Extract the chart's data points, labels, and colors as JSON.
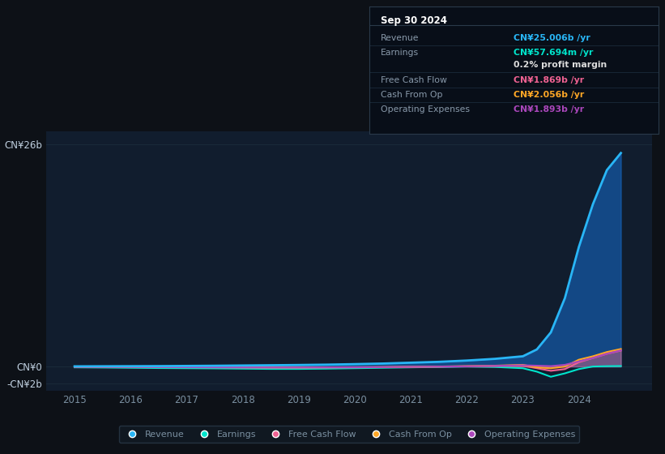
{
  "background_color": "#0d1117",
  "plot_bg_color": "#111d2e",
  "grid_color": "#1a2a3a",
  "text_color": "#7a8fa0",
  "ylabel_color": "#c0d0e0",
  "years": [
    2015.0,
    2015.5,
    2016.0,
    2016.5,
    2017.0,
    2017.5,
    2018.0,
    2018.5,
    2019.0,
    2019.5,
    2020.0,
    2020.5,
    2021.0,
    2021.5,
    2022.0,
    2022.5,
    2023.0,
    2023.25,
    2023.5,
    2023.75,
    2024.0,
    2024.25,
    2024.5,
    2024.75
  ],
  "revenue": [
    0.02,
    0.03,
    0.04,
    0.05,
    0.07,
    0.09,
    0.12,
    0.15,
    0.18,
    0.22,
    0.28,
    0.35,
    0.45,
    0.55,
    0.7,
    0.9,
    1.2,
    2.0,
    4.0,
    8.0,
    14.0,
    19.0,
    23.0,
    25.0
  ],
  "earnings": [
    -0.1,
    -0.12,
    -0.15,
    -0.18,
    -0.2,
    -0.22,
    -0.25,
    -0.28,
    -0.28,
    -0.25,
    -0.2,
    -0.15,
    -0.1,
    -0.05,
    0.0,
    -0.05,
    -0.2,
    -0.6,
    -1.2,
    -0.8,
    -0.3,
    0.0,
    0.04,
    0.058
  ],
  "free_cash_flow": [
    -0.05,
    -0.06,
    -0.07,
    -0.08,
    -0.09,
    -0.1,
    -0.11,
    -0.12,
    -0.12,
    -0.11,
    -0.1,
    -0.08,
    -0.05,
    -0.02,
    0.02,
    0.05,
    0.1,
    -0.2,
    -0.5,
    -0.3,
    0.5,
    1.0,
    1.5,
    1.869
  ],
  "cash_from_op": [
    -0.03,
    -0.04,
    -0.05,
    -0.06,
    -0.07,
    -0.08,
    -0.09,
    -0.1,
    -0.1,
    -0.09,
    -0.08,
    -0.06,
    -0.03,
    0.0,
    0.05,
    0.1,
    0.2,
    -0.1,
    -0.2,
    0.0,
    0.8,
    1.2,
    1.7,
    2.056
  ],
  "operating_expenses": [
    -0.04,
    -0.05,
    -0.06,
    -0.07,
    -0.08,
    -0.09,
    -0.1,
    -0.11,
    -0.11,
    -0.1,
    -0.09,
    -0.07,
    -0.04,
    -0.01,
    0.03,
    0.08,
    0.15,
    0.1,
    0.05,
    0.2,
    0.6,
    1.0,
    1.5,
    1.893
  ],
  "revenue_color": "#29b6f6",
  "earnings_color": "#00e5cc",
  "fcf_color": "#f06292",
  "cashop_color": "#ffa726",
  "opex_color": "#ab47bc",
  "revenue_fill_color": "#1565c0",
  "ylim_min": -2.8,
  "ylim_max": 27.5,
  "ytick_labels": [
    "-CN¥2b",
    "CN¥0",
    "CN¥26b"
  ],
  "ytick_values": [
    -2,
    0,
    26
  ],
  "xticks": [
    2015,
    2016,
    2017,
    2018,
    2019,
    2020,
    2021,
    2022,
    2023,
    2024
  ],
  "tooltip_title": "Sep 30 2024",
  "tooltip_rows": [
    {
      "label": "Revenue",
      "value": "CN¥25.006b /yr",
      "color": "#29b6f6",
      "is_pct": false
    },
    {
      "label": "Earnings",
      "value": "CN¥57.694m /yr",
      "color": "#00e5cc",
      "is_pct": false
    },
    {
      "label": "",
      "value": "0.2% profit margin",
      "color": "#dddddd",
      "is_pct": true
    },
    {
      "label": "Free Cash Flow",
      "value": "CN¥1.869b /yr",
      "color": "#f06292",
      "is_pct": false
    },
    {
      "label": "Cash From Op",
      "value": "CN¥2.056b /yr",
      "color": "#ffa726",
      "is_pct": false
    },
    {
      "label": "Operating Expenses",
      "value": "CN¥1.893b /yr",
      "color": "#ab47bc",
      "is_pct": false
    }
  ],
  "legend_items": [
    {
      "label": "Revenue",
      "color": "#29b6f6"
    },
    {
      "label": "Earnings",
      "color": "#00e5cc"
    },
    {
      "label": "Free Cash Flow",
      "color": "#f06292"
    },
    {
      "label": "Cash From Op",
      "color": "#ffa726"
    },
    {
      "label": "Operating Expenses",
      "color": "#ab47bc"
    }
  ]
}
